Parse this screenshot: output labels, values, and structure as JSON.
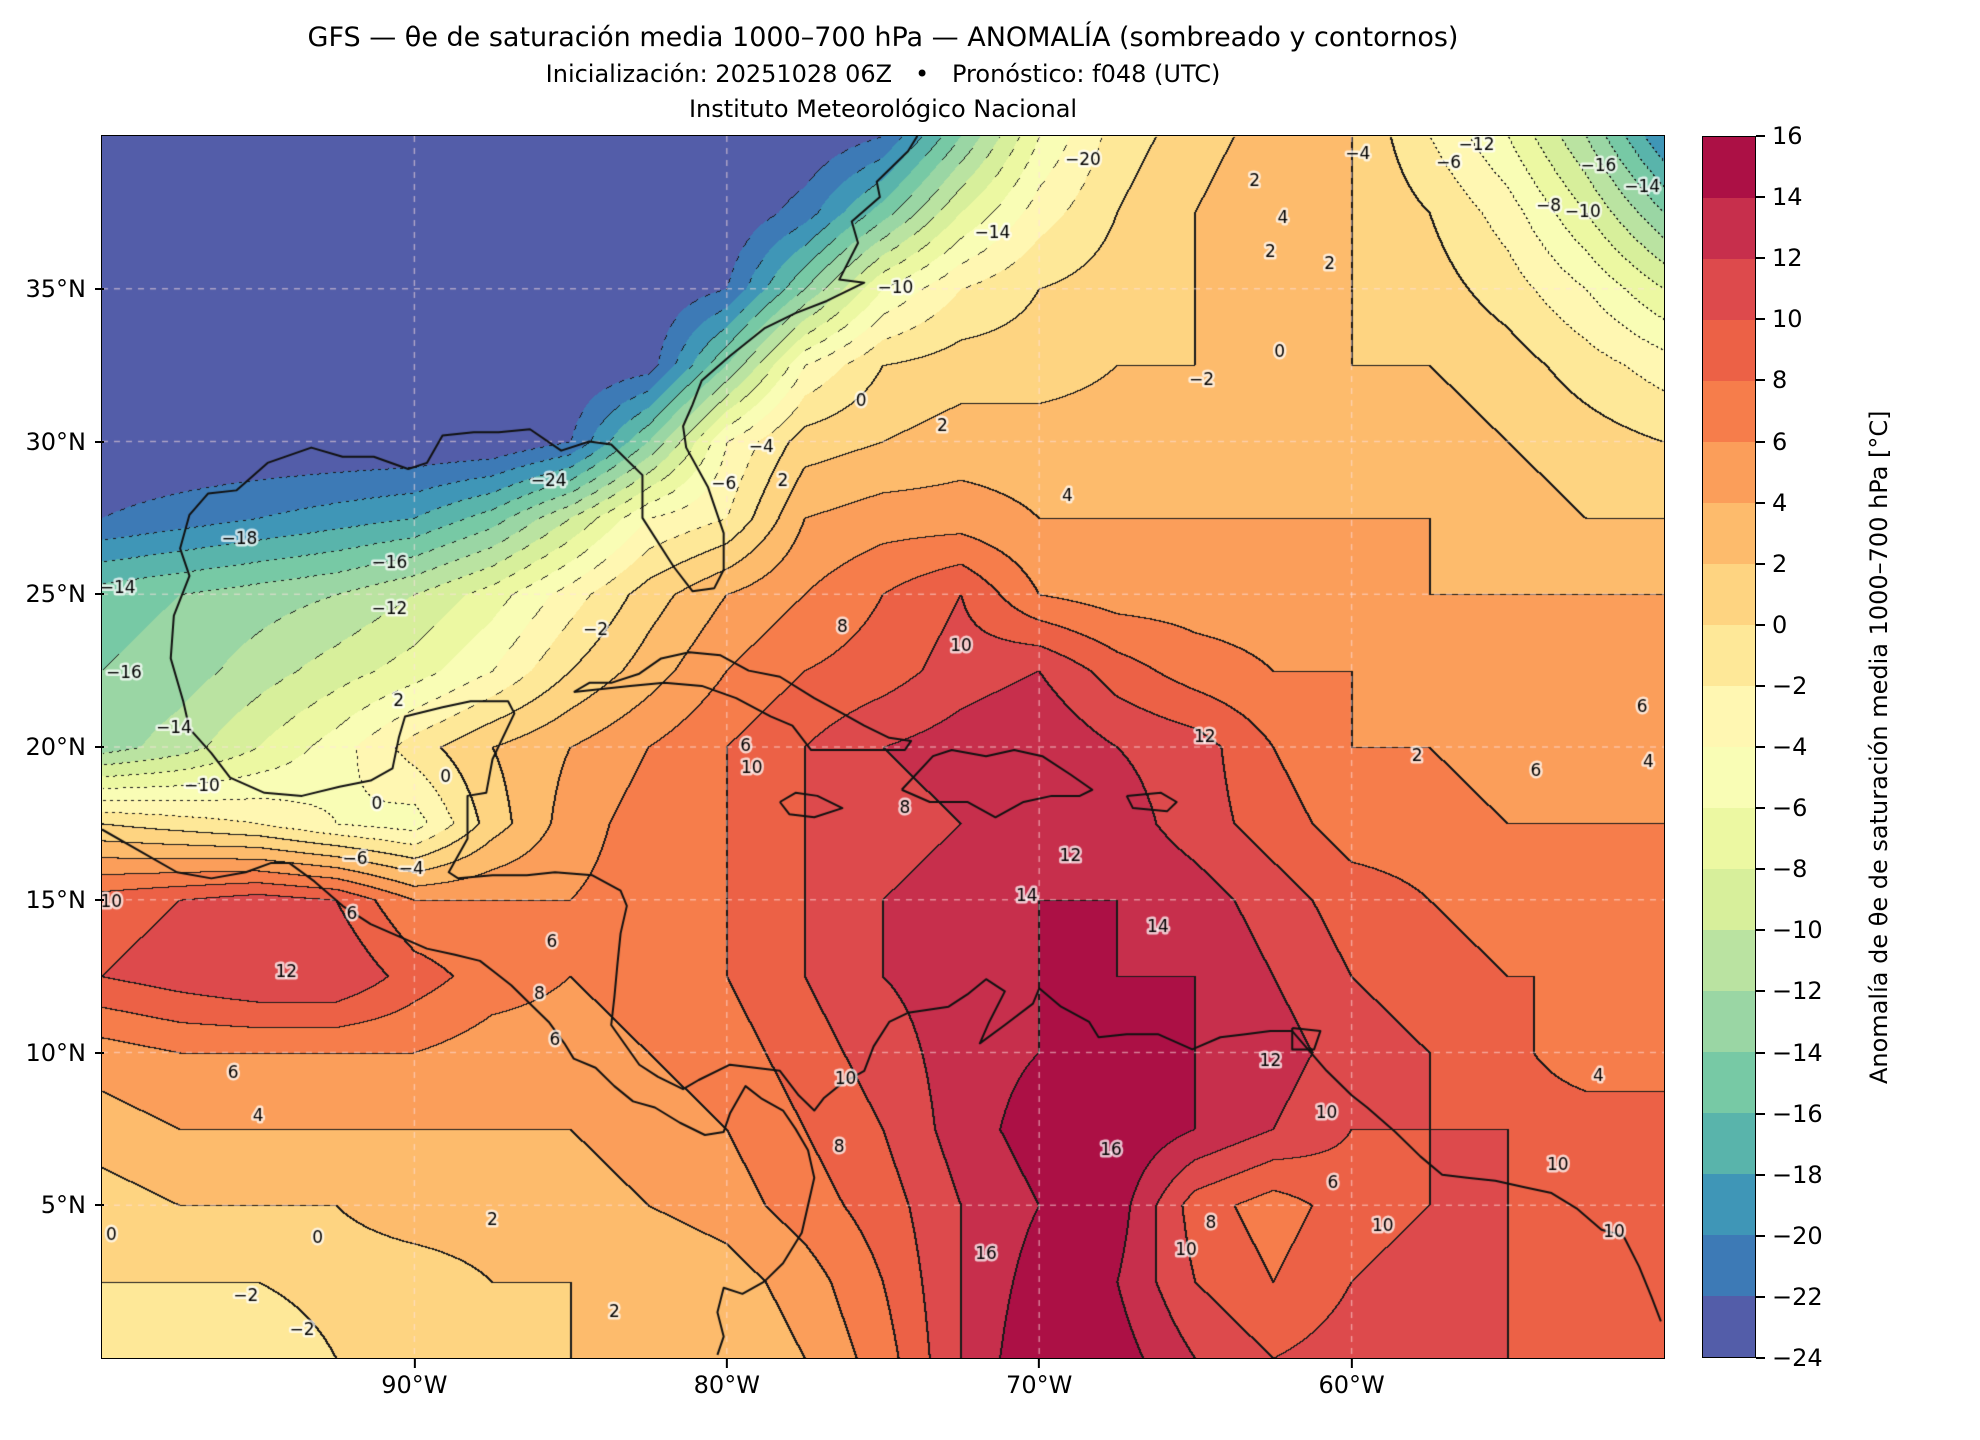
{
  "header": {
    "title": "GFS — θe de saturación media 1000–700 hPa — ANOMALÍA (sombreado y contornos)",
    "subtitle": "Inicialización: 20251028 06Z   •   Pronóstico: f048 (UTC)",
    "institution": "Instituto Meteorológico Nacional"
  },
  "axes": {
    "x_ticks": [
      {
        "label": "90°W",
        "lon": -90
      },
      {
        "label": "80°W",
        "lon": -80
      },
      {
        "label": "70°W",
        "lon": -70
      },
      {
        "label": "60°W",
        "lon": -60
      }
    ],
    "y_ticks": [
      {
        "label": "35°N",
        "lat": 35
      },
      {
        "label": "30°N",
        "lat": 30
      },
      {
        "label": "25°N",
        "lat": 25
      },
      {
        "label": "20°N",
        "lat": 20
      },
      {
        "label": "15°N",
        "lat": 15
      },
      {
        "label": "10°N",
        "lat": 10
      },
      {
        "label": "5°N",
        "lat": 5
      }
    ]
  },
  "colorbar": {
    "label": "Anomalía de θe de saturación media 1000–700 hPa [°C]",
    "levels": [
      -24,
      -22,
      -20,
      -18,
      -16,
      -14,
      -12,
      -10,
      -8,
      -6,
      -4,
      -2,
      0,
      2,
      4,
      6,
      8,
      10,
      12,
      14,
      16
    ],
    "colors": [
      "#535da9",
      "#3d7ab6",
      "#3f96b7",
      "#59b4ab",
      "#77c9a5",
      "#9ad6a4",
      "#bae3a1",
      "#d7ef9b",
      "#ecf8a2",
      "#f9fdb5",
      "#fff7b2",
      "#fee898",
      "#fed481",
      "#fdbb6c",
      "#fb9e5a",
      "#f67d4b",
      "#ec6146",
      "#dd4a4c",
      "#c72f4c",
      "#ac1045"
    ],
    "ticks": [
      {
        "label": "16",
        "value": 16
      },
      {
        "label": "14",
        "value": 14
      },
      {
        "label": "12",
        "value": 12
      },
      {
        "label": "10",
        "value": 10
      },
      {
        "label": "8",
        "value": 8
      },
      {
        "label": "6",
        "value": 6
      },
      {
        "label": "4",
        "value": 4
      },
      {
        "label": "2",
        "value": 2
      },
      {
        "label": "0",
        "value": 0
      },
      {
        "label": "−2",
        "value": -2
      },
      {
        "label": "−4",
        "value": -4
      },
      {
        "label": "−6",
        "value": -6
      },
      {
        "label": "−8",
        "value": -8
      },
      {
        "label": "−10",
        "value": -10
      },
      {
        "label": "−12",
        "value": -12
      },
      {
        "label": "−14",
        "value": -14
      },
      {
        "label": "−16",
        "value": -16
      },
      {
        "label": "−18",
        "value": -18
      },
      {
        "label": "−20",
        "value": -20
      },
      {
        "label": "−22",
        "value": -22
      },
      {
        "label": "−24",
        "value": -24
      }
    ]
  },
  "chart_data": {
    "type": "heatmap",
    "title": "GFS — θe de saturación media 1000–700 hPa — ANOMALÍA (sombreado y contornos)",
    "xlabel": "",
    "ylabel": "",
    "units": "°C",
    "contour_interval": 2,
    "x_range": [
      -100,
      -50
    ],
    "y_range": [
      0,
      40
    ],
    "gridlines": {
      "lons": [
        -90,
        -80,
        -70,
        -60
      ],
      "lats": [
        5,
        10,
        15,
        20,
        25,
        30,
        35
      ]
    },
    "grid": {
      "lons": [
        -100,
        -97.5,
        -95,
        -92.5,
        -90,
        -87.5,
        -85,
        -82.5,
        -80,
        -77.5,
        -75,
        -72.5,
        -70,
        -67.5,
        -65,
        -62.5,
        -60,
        -57.5,
        -55,
        -52.5,
        -50
      ],
      "lats": [
        40,
        37.5,
        35,
        32.5,
        30,
        27.5,
        25,
        22.5,
        20,
        17.5,
        15,
        12.5,
        10,
        7.5,
        5,
        2.5,
        0
      ],
      "values": [
        [
          -24,
          -24,
          -24,
          -24,
          -24,
          -24,
          -24,
          -24,
          -24,
          -24,
          -22,
          -14,
          -6,
          -1,
          1,
          3,
          2,
          -2,
          -6,
          -12,
          -20
        ],
        [
          -24,
          -24,
          -24,
          -24,
          -24,
          -24,
          -24,
          -24,
          -24,
          -21,
          -15,
          -8,
          -3,
          0,
          2,
          4,
          2,
          0,
          -3,
          -8,
          -14
        ],
        [
          -24,
          -24,
          -24,
          -24,
          -24,
          -24,
          -24,
          -24,
          -22,
          -14,
          -6,
          -2,
          0,
          1,
          2,
          2,
          2,
          1,
          -1,
          -4,
          -8
        ],
        [
          -24,
          -24,
          -24,
          -24,
          -24,
          -24,
          -24,
          -23,
          -14,
          -4,
          0,
          1,
          1,
          2,
          2,
          2,
          2,
          2,
          1,
          -1,
          -3
        ],
        [
          -24,
          -24,
          -24,
          -24,
          -24,
          -24,
          -22,
          -14,
          -4,
          1,
          2,
          3,
          3,
          3,
          3,
          3,
          3,
          3,
          2,
          1,
          0
        ],
        [
          -22,
          -21,
          -20,
          -19,
          -18,
          -15,
          -10,
          -4,
          -2,
          4,
          5,
          5,
          4,
          4,
          4,
          4,
          4,
          4,
          3,
          2,
          2
        ],
        [
          -15,
          -14,
          -13,
          -12,
          -10,
          -7,
          -3,
          1,
          4,
          6,
          8,
          10,
          6,
          5,
          5,
          5,
          5,
          4,
          4,
          4,
          4
        ],
        [
          -14,
          -13,
          -11,
          -9,
          -7,
          -4,
          0,
          3,
          6,
          8,
          9,
          11,
          12,
          9,
          7,
          6,
          6,
          5,
          5,
          5,
          6
        ],
        [
          -13,
          -11,
          -8,
          -5,
          -1,
          2,
          4,
          6,
          8,
          10,
          12,
          13,
          14,
          12,
          11,
          8,
          6,
          6,
          5,
          4,
          4
        ],
        [
          0,
          -1,
          -2,
          -4,
          -5,
          1,
          5,
          7,
          8,
          10,
          11,
          12,
          13,
          13,
          11,
          9,
          7,
          7,
          6,
          6,
          6
        ],
        [
          9,
          10,
          11,
          10,
          6,
          6,
          6,
          7,
          8,
          10,
          12,
          13,
          14,
          14,
          13,
          11,
          9,
          8,
          7,
          7,
          7
        ],
        [
          10,
          11,
          12,
          12,
          9,
          7,
          6,
          7,
          8,
          10,
          12,
          13,
          14,
          14,
          14,
          12,
          10,
          9,
          8,
          8,
          8
        ],
        [
          5,
          6,
          6,
          6,
          6,
          5,
          5,
          6,
          7,
          9,
          11,
          13,
          14,
          15,
          14,
          13,
          11,
          10,
          9,
          6,
          6
        ],
        [
          3,
          4,
          4,
          4,
          4,
          4,
          4,
          5,
          6,
          8,
          10,
          13,
          15,
          16,
          14,
          12,
          10,
          10,
          10,
          10,
          10
        ],
        [
          1,
          2,
          2,
          2,
          3,
          3,
          3,
          4,
          5,
          7,
          9,
          12,
          14,
          15,
          9,
          7,
          9,
          10,
          10,
          9,
          9
        ],
        [
          0,
          0,
          0,
          1,
          1,
          2,
          2,
          2,
          3,
          5,
          8,
          12,
          15,
          14,
          10,
          8,
          10,
          11,
          10,
          9,
          8
        ],
        [
          -1,
          -1,
          -2,
          0,
          1,
          1,
          2,
          2,
          2,
          4,
          7,
          12,
          16,
          15,
          12,
          10,
          11,
          11,
          10,
          9,
          8
        ]
      ]
    },
    "contour_labels": [
      {
        "text": "−20",
        "lon": -68.6,
        "lat": 39.2
      },
      {
        "text": "−14",
        "lon": -71.5,
        "lat": 36.8
      },
      {
        "text": "−10",
        "lon": -74.6,
        "lat": 35.0
      },
      {
        "text": "−4",
        "lon": -59.8,
        "lat": 39.4
      },
      {
        "text": "−6",
        "lon": -56.9,
        "lat": 39.1
      },
      {
        "text": "−12",
        "lon": -56.0,
        "lat": 39.7
      },
      {
        "text": "−16",
        "lon": -52.1,
        "lat": 39.0
      },
      {
        "text": "−14",
        "lon": -50.7,
        "lat": 38.3
      },
      {
        "text": "−8",
        "lon": -53.7,
        "lat": 37.7
      },
      {
        "text": "−10",
        "lon": -52.6,
        "lat": 37.5
      },
      {
        "text": "2",
        "lon": -63.1,
        "lat": 38.5
      },
      {
        "text": "4",
        "lon": -62.2,
        "lat": 37.3
      },
      {
        "text": "2",
        "lon": -62.6,
        "lat": 36.2
      },
      {
        "text": "2",
        "lon": -60.7,
        "lat": 35.8
      },
      {
        "text": "0",
        "lon": -62.3,
        "lat": 32.9
      },
      {
        "text": "−2",
        "lon": -64.8,
        "lat": 32.0
      },
      {
        "text": "0",
        "lon": -75.7,
        "lat": 31.3
      },
      {
        "text": "2",
        "lon": -73.1,
        "lat": 30.5
      },
      {
        "text": "−24",
        "lon": -85.7,
        "lat": 28.7
      },
      {
        "text": "−4",
        "lon": -78.9,
        "lat": 29.8
      },
      {
        "text": "−6",
        "lon": -80.1,
        "lat": 28.6
      },
      {
        "text": "2",
        "lon": -78.2,
        "lat": 28.7
      },
      {
        "text": "4",
        "lon": -69.1,
        "lat": 28.2
      },
      {
        "text": "−18",
        "lon": -95.6,
        "lat": 26.8
      },
      {
        "text": "−16",
        "lon": -90.8,
        "lat": 26.0
      },
      {
        "text": "−12",
        "lon": -90.8,
        "lat": 24.5
      },
      {
        "text": "−14",
        "lon": -99.5,
        "lat": 25.2
      },
      {
        "text": "−16",
        "lon": -99.3,
        "lat": 22.4
      },
      {
        "text": "−14",
        "lon": -97.7,
        "lat": 20.6
      },
      {
        "text": "−10",
        "lon": -96.8,
        "lat": 18.7
      },
      {
        "text": "−2",
        "lon": -84.2,
        "lat": 23.8
      },
      {
        "text": "8",
        "lon": -76.3,
        "lat": 23.9
      },
      {
        "text": "10",
        "lon": -72.5,
        "lat": 23.3
      },
      {
        "text": "6",
        "lon": -79.4,
        "lat": 20.0
      },
      {
        "text": "10",
        "lon": -79.2,
        "lat": 19.3
      },
      {
        "text": "12",
        "lon": -64.7,
        "lat": 20.3
      },
      {
        "text": "6",
        "lon": -50.7,
        "lat": 21.3
      },
      {
        "text": "4",
        "lon": -50.5,
        "lat": 19.5
      },
      {
        "text": "6",
        "lon": -54.1,
        "lat": 19.2
      },
      {
        "text": "2",
        "lon": -57.9,
        "lat": 19.7
      },
      {
        "text": "0",
        "lon": -91.2,
        "lat": 18.1
      },
      {
        "text": "0",
        "lon": -89.0,
        "lat": 19.0
      },
      {
        "text": "2",
        "lon": -90.5,
        "lat": 21.5
      },
      {
        "text": "−6",
        "lon": -91.9,
        "lat": 16.3
      },
      {
        "text": "−4",
        "lon": -90.1,
        "lat": 16.0
      },
      {
        "text": "10",
        "lon": -99.7,
        "lat": 14.9
      },
      {
        "text": "12",
        "lon": -94.1,
        "lat": 12.6
      },
      {
        "text": "6",
        "lon": -92.0,
        "lat": 14.5
      },
      {
        "text": "6",
        "lon": -85.6,
        "lat": 13.6
      },
      {
        "text": "8",
        "lon": -86.0,
        "lat": 11.9
      },
      {
        "text": "6",
        "lon": -85.5,
        "lat": 10.4
      },
      {
        "text": "12",
        "lon": -69.0,
        "lat": 16.4
      },
      {
        "text": "14",
        "lon": -70.4,
        "lat": 15.1
      },
      {
        "text": "14",
        "lon": -66.2,
        "lat": 14.1
      },
      {
        "text": "8",
        "lon": -74.3,
        "lat": 18.0
      },
      {
        "text": "16",
        "lon": -67.7,
        "lat": 6.8
      },
      {
        "text": "16",
        "lon": -71.7,
        "lat": 3.4
      },
      {
        "text": "10",
        "lon": -76.2,
        "lat": 9.1
      },
      {
        "text": "8",
        "lon": -76.4,
        "lat": 6.9
      },
      {
        "text": "12",
        "lon": -62.6,
        "lat": 9.7
      },
      {
        "text": "10",
        "lon": -60.8,
        "lat": 8.0
      },
      {
        "text": "6",
        "lon": -60.6,
        "lat": 5.7
      },
      {
        "text": "8",
        "lon": -64.5,
        "lat": 4.4
      },
      {
        "text": "10",
        "lon": -65.3,
        "lat": 3.5
      },
      {
        "text": "10",
        "lon": -59.0,
        "lat": 4.3
      },
      {
        "text": "6",
        "lon": -95.8,
        "lat": 9.3
      },
      {
        "text": "4",
        "lon": -95.0,
        "lat": 7.9
      },
      {
        "text": "2",
        "lon": -87.5,
        "lat": 4.5
      },
      {
        "text": "0",
        "lon": -93.1,
        "lat": 3.9
      },
      {
        "text": "−2",
        "lon": -95.4,
        "lat": 2.0
      },
      {
        "text": "0",
        "lon": -99.7,
        "lat": 4.0
      },
      {
        "text": "−2",
        "lon": -93.6,
        "lat": 0.9
      },
      {
        "text": "2",
        "lon": -83.6,
        "lat": 1.5
      },
      {
        "text": "4",
        "lon": -52.1,
        "lat": 9.2
      },
      {
        "text": "10",
        "lon": -53.4,
        "lat": 6.3
      },
      {
        "text": "10",
        "lon": -51.6,
        "lat": 4.1
      }
    ]
  }
}
